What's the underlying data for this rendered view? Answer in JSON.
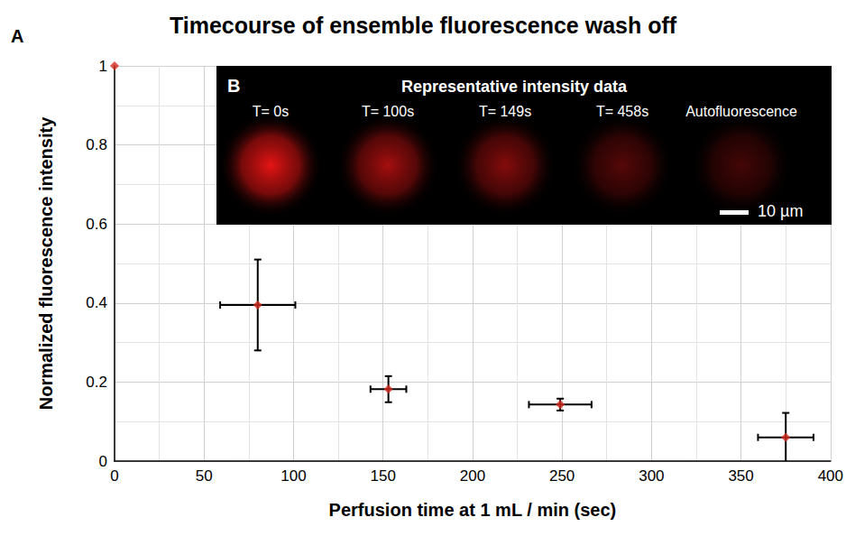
{
  "chart_data": {
    "type": "scatter",
    "panel_label": "A",
    "title": "Timecourse of ensemble fluorescence wash off",
    "x_label": "Perfusion time at 1 mL / min (sec)",
    "y_label": "Normalized fluorescence intensity",
    "x": [
      0,
      80,
      153,
      249,
      375
    ],
    "values": [
      1,
      0.395,
      0.182,
      0.143,
      0.06
    ],
    "x_err": [
      null,
      21,
      10,
      17.5,
      15.5
    ],
    "y_err": [
      null,
      0.115,
      0.033,
      0.015,
      0.062
    ],
    "color": "#d62a1e",
    "marker": "diamond",
    "xlim": [
      0,
      400
    ],
    "xticks": [
      0,
      50,
      100,
      150,
      200,
      250,
      300,
      350,
      400
    ],
    "ylim": [
      0,
      1
    ],
    "yticks": [
      0,
      0.2,
      0.4,
      0.6,
      0.8,
      1
    ],
    "grid": true,
    "inset": {
      "label": "B",
      "title": "Representative intensity data",
      "frames": [
        "T= 0s",
        "T= 100s",
        "T= 149s",
        "T= 458s",
        "Autofluorescence"
      ],
      "scale_bar": "10 µm"
    }
  }
}
